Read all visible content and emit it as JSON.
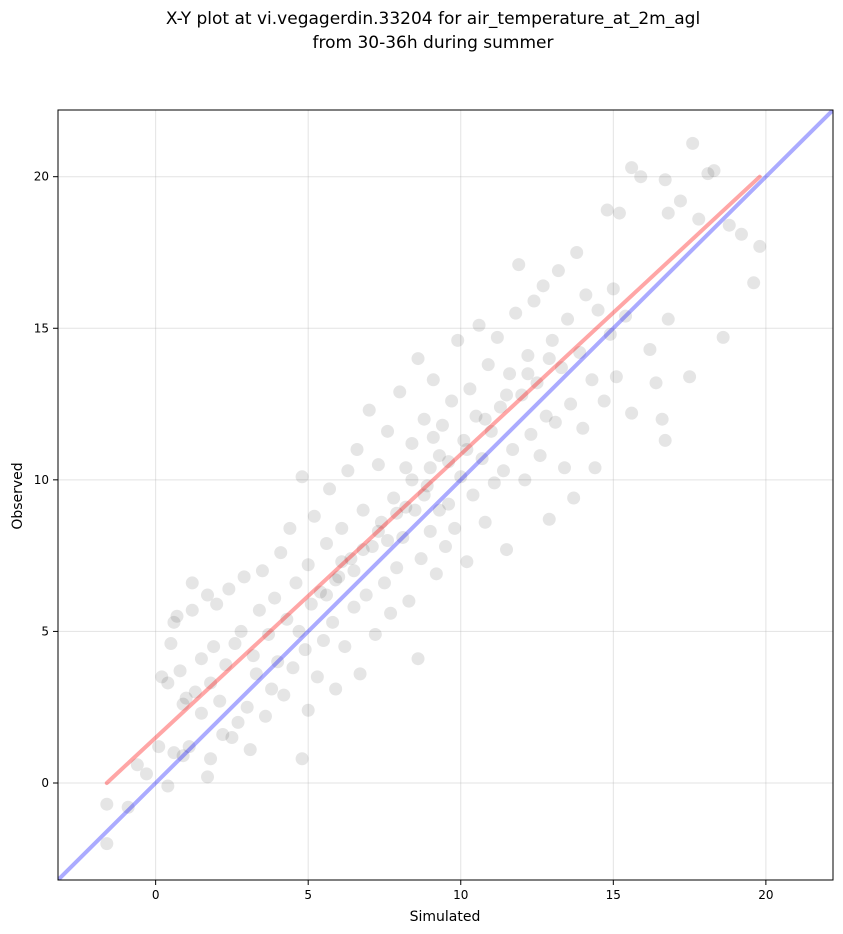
{
  "chart_data": {
    "type": "scatter",
    "title_lines": [
      "X-Y plot at vi.vegagerdin.33204 for air_temperature_at_2m_agl",
      "from 30-36h during summer"
    ],
    "xlabel": "Simulated",
    "ylabel": "Observed",
    "xlim": [
      -3.2,
      22.2
    ],
    "ylim": [
      -3.2,
      22.2
    ],
    "xticks": [
      0,
      5,
      10,
      15,
      20
    ],
    "yticks": [
      0,
      5,
      10,
      15,
      20
    ],
    "grid": true,
    "point_color": "#000000",
    "point_opacity": 0.1,
    "lines": [
      {
        "role": "fit",
        "color": "#ff0000",
        "opacity": 0.35,
        "x": [
          -1.6,
          19.8
        ],
        "y": [
          0.0,
          20.0
        ]
      },
      {
        "role": "identity",
        "color": "#0000ff",
        "opacity": 0.33,
        "x": [
          -3.2,
          22.2
        ],
        "y": [
          -3.2,
          22.2
        ]
      }
    ],
    "series": [
      {
        "points": [
          [
            -1.6,
            -2.0
          ],
          [
            -1.6,
            -0.7
          ],
          [
            -0.9,
            -0.8
          ],
          [
            -0.6,
            0.6
          ],
          [
            -0.3,
            0.3
          ],
          [
            0.1,
            1.2
          ],
          [
            0.4,
            -0.1
          ],
          [
            0.2,
            3.5
          ],
          [
            0.4,
            3.3
          ],
          [
            0.5,
            4.6
          ],
          [
            0.6,
            5.3
          ],
          [
            0.7,
            5.5
          ],
          [
            0.6,
            1.0
          ],
          [
            0.8,
            3.7
          ],
          [
            0.9,
            2.6
          ],
          [
            0.9,
            0.9
          ],
          [
            1.0,
            2.8
          ],
          [
            1.1,
            1.2
          ],
          [
            1.2,
            5.7
          ],
          [
            1.2,
            6.6
          ],
          [
            1.3,
            3.0
          ],
          [
            1.5,
            2.3
          ],
          [
            1.5,
            4.1
          ],
          [
            1.7,
            6.2
          ],
          [
            1.7,
            0.2
          ],
          [
            1.8,
            0.8
          ],
          [
            1.8,
            3.3
          ],
          [
            1.9,
            4.5
          ],
          [
            2.0,
            5.9
          ],
          [
            2.1,
            2.7
          ],
          [
            2.2,
            1.6
          ],
          [
            2.3,
            3.9
          ],
          [
            2.4,
            6.4
          ],
          [
            2.5,
            1.5
          ],
          [
            2.6,
            4.6
          ],
          [
            2.7,
            2.0
          ],
          [
            2.8,
            5.0
          ],
          [
            2.9,
            6.8
          ],
          [
            3.0,
            2.5
          ],
          [
            3.1,
            1.1
          ],
          [
            3.2,
            4.2
          ],
          [
            3.3,
            3.6
          ],
          [
            3.4,
            5.7
          ],
          [
            3.5,
            7.0
          ],
          [
            3.6,
            2.2
          ],
          [
            3.7,
            4.9
          ],
          [
            3.8,
            3.1
          ],
          [
            3.9,
            6.1
          ],
          [
            4.0,
            4.0
          ],
          [
            4.1,
            7.6
          ],
          [
            4.2,
            2.9
          ],
          [
            4.3,
            5.4
          ],
          [
            4.4,
            8.4
          ],
          [
            4.5,
            3.8
          ],
          [
            4.6,
            6.6
          ],
          [
            4.7,
            5.0
          ],
          [
            4.8,
            0.8
          ],
          [
            4.8,
            10.1
          ],
          [
            4.9,
            4.4
          ],
          [
            5.0,
            7.2
          ],
          [
            5.0,
            2.4
          ],
          [
            5.1,
            5.9
          ],
          [
            5.2,
            8.8
          ],
          [
            5.3,
            3.5
          ],
          [
            5.4,
            6.3
          ],
          [
            5.5,
            4.7
          ],
          [
            5.6,
            7.9
          ],
          [
            5.7,
            9.7
          ],
          [
            5.8,
            5.3
          ],
          [
            5.9,
            3.1
          ],
          [
            6.0,
            6.8
          ],
          [
            6.1,
            8.4
          ],
          [
            6.2,
            4.5
          ],
          [
            6.3,
            10.3
          ],
          [
            6.4,
            7.4
          ],
          [
            6.5,
            5.8
          ],
          [
            6.6,
            11.0
          ],
          [
            6.7,
            3.6
          ],
          [
            6.8,
            9.0
          ],
          [
            6.9,
            6.2
          ],
          [
            7.0,
            12.3
          ],
          [
            7.1,
            7.8
          ],
          [
            7.2,
            4.9
          ],
          [
            7.3,
            10.5
          ],
          [
            7.4,
            8.6
          ],
          [
            7.5,
            6.6
          ],
          [
            7.6,
            11.6
          ],
          [
            7.7,
            5.6
          ],
          [
            7.8,
            9.4
          ],
          [
            7.9,
            7.1
          ],
          [
            8.0,
            12.9
          ],
          [
            8.1,
            8.1
          ],
          [
            8.2,
            10.4
          ],
          [
            8.3,
            6.0
          ],
          [
            8.4,
            11.2
          ],
          [
            8.5,
            9.0
          ],
          [
            8.6,
            14.0
          ],
          [
            8.6,
            4.1
          ],
          [
            8.7,
            7.4
          ],
          [
            8.8,
            12.0
          ],
          [
            8.9,
            9.8
          ],
          [
            9.0,
            8.3
          ],
          [
            9.1,
            13.3
          ],
          [
            9.2,
            6.9
          ],
          [
            9.3,
            10.8
          ],
          [
            9.4,
            11.8
          ],
          [
            9.5,
            7.8
          ],
          [
            9.6,
            9.2
          ],
          [
            9.7,
            12.6
          ],
          [
            9.8,
            8.4
          ],
          [
            9.9,
            14.6
          ],
          [
            10.0,
            10.1
          ],
          [
            10.1,
            11.3
          ],
          [
            10.2,
            7.3
          ],
          [
            10.3,
            13.0
          ],
          [
            10.4,
            9.5
          ],
          [
            10.5,
            12.1
          ],
          [
            10.6,
            15.1
          ],
          [
            10.7,
            10.7
          ],
          [
            10.8,
            8.6
          ],
          [
            10.9,
            13.8
          ],
          [
            11.0,
            11.6
          ],
          [
            11.1,
            9.9
          ],
          [
            11.2,
            14.7
          ],
          [
            11.3,
            12.4
          ],
          [
            11.4,
            10.3
          ],
          [
            11.5,
            7.7
          ],
          [
            11.6,
            13.5
          ],
          [
            11.7,
            11.0
          ],
          [
            11.8,
            15.5
          ],
          [
            11.9,
            17.1
          ],
          [
            12.0,
            12.8
          ],
          [
            12.1,
            10.0
          ],
          [
            12.2,
            14.1
          ],
          [
            12.3,
            11.5
          ],
          [
            12.4,
            15.9
          ],
          [
            12.5,
            13.2
          ],
          [
            12.6,
            10.8
          ],
          [
            12.7,
            16.4
          ],
          [
            12.8,
            12.1
          ],
          [
            12.9,
            8.7
          ],
          [
            13.0,
            14.6
          ],
          [
            13.1,
            11.9
          ],
          [
            13.2,
            16.9
          ],
          [
            13.3,
            13.7
          ],
          [
            13.4,
            10.4
          ],
          [
            13.5,
            15.3
          ],
          [
            13.6,
            12.5
          ],
          [
            13.7,
            9.4
          ],
          [
            13.8,
            17.5
          ],
          [
            13.9,
            14.2
          ],
          [
            14.0,
            11.7
          ],
          [
            14.1,
            16.1
          ],
          [
            14.3,
            13.3
          ],
          [
            14.4,
            10.4
          ],
          [
            14.5,
            15.6
          ],
          [
            14.7,
            12.6
          ],
          [
            14.8,
            18.9
          ],
          [
            14.9,
            14.8
          ],
          [
            15.0,
            16.3
          ],
          [
            15.1,
            13.4
          ],
          [
            15.2,
            18.8
          ],
          [
            15.4,
            15.4
          ],
          [
            15.6,
            12.2
          ],
          [
            15.6,
            20.3
          ],
          [
            15.9,
            20.0
          ],
          [
            16.2,
            14.3
          ],
          [
            16.4,
            13.2
          ],
          [
            16.6,
            12.0
          ],
          [
            16.7,
            19.9
          ],
          [
            16.7,
            11.3
          ],
          [
            16.8,
            15.3
          ],
          [
            16.8,
            18.8
          ],
          [
            17.2,
            19.2
          ],
          [
            17.5,
            13.4
          ],
          [
            17.6,
            21.1
          ],
          [
            17.8,
            18.6
          ],
          [
            18.1,
            20.1
          ],
          [
            18.3,
            20.2
          ],
          [
            18.6,
            14.7
          ],
          [
            18.8,
            18.4
          ],
          [
            19.2,
            18.1
          ],
          [
            19.6,
            16.5
          ],
          [
            19.8,
            17.7
          ],
          [
            9.0,
            10.4
          ],
          [
            8.8,
            9.5
          ],
          [
            9.3,
            9.0
          ],
          [
            8.4,
            10.0
          ],
          [
            9.6,
            10.6
          ],
          [
            7.9,
            8.9
          ],
          [
            8.2,
            9.1
          ],
          [
            9.1,
            11.4
          ],
          [
            7.6,
            8.0
          ],
          [
            10.2,
            11.0
          ],
          [
            6.8,
            7.7
          ],
          [
            7.3,
            8.3
          ],
          [
            6.5,
            7.0
          ],
          [
            5.9,
            6.7
          ],
          [
            6.1,
            7.3
          ],
          [
            5.6,
            6.2
          ],
          [
            10.8,
            12.0
          ],
          [
            11.5,
            12.8
          ],
          [
            12.2,
            13.5
          ],
          [
            12.9,
            14.0
          ]
        ]
      }
    ]
  }
}
